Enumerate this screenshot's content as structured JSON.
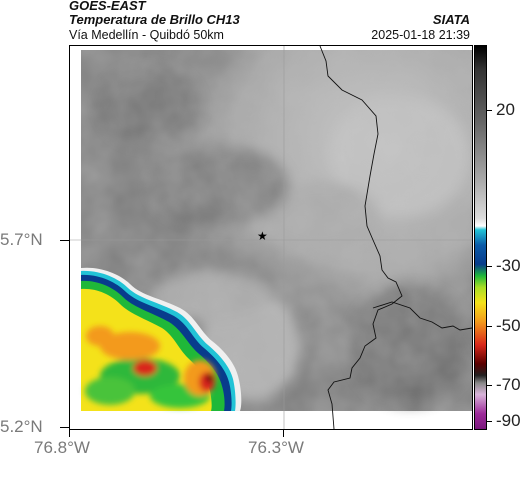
{
  "header": {
    "satellite": "GOES-EAST",
    "product": "Temperatura de Brillo CH13",
    "agency": "SIATA",
    "route": "Vía Medellín - Quibdó 50km",
    "datetime": "2025-01-18 21:39"
  },
  "map": {
    "lat_ticks": [
      "5.7°N",
      "5.2°N"
    ],
    "lon_ticks": [
      "76.8°W",
      "76.3°W"
    ],
    "marker": {
      "symbol": "★",
      "name": "reference-point"
    }
  },
  "colorbar": {
    "labels": [
      "20",
      "-30",
      "-50",
      "-70",
      "-90"
    ],
    "unit": "",
    "colors": {
      "warm_gray": "#7d7d7d",
      "cold_cyan": "#22c3d6",
      "blue": "#083c8c",
      "green": "#1fb839",
      "yellow": "#f4e21a",
      "orange": "#f39a1b",
      "red": "#d9281b",
      "dark_red": "#3a0000",
      "light_purple": "#d8b4d9",
      "purple": "#9d2b9a"
    }
  }
}
